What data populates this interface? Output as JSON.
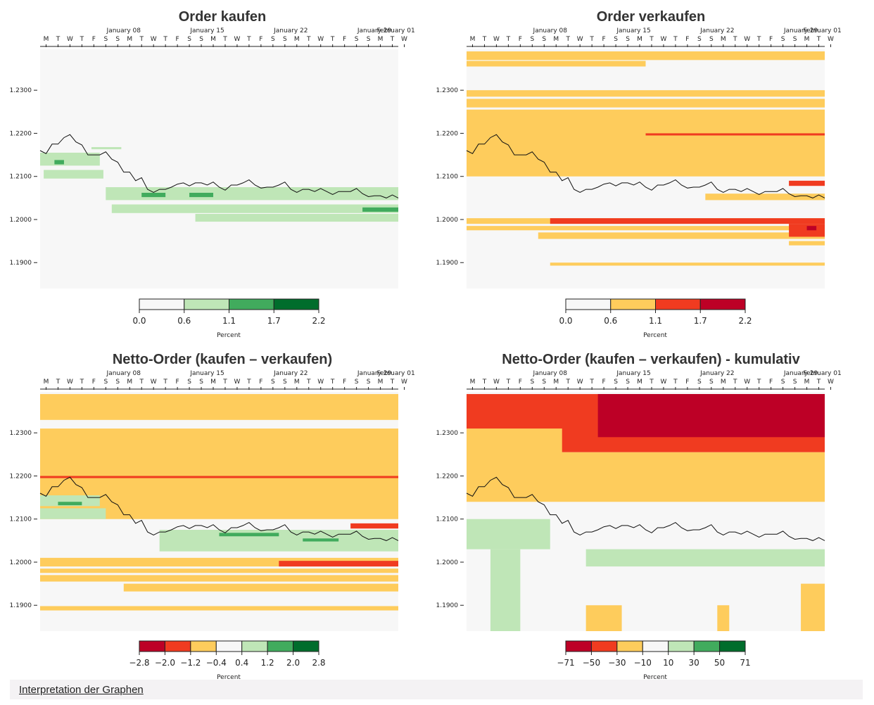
{
  "page": {
    "footer_link": "Interpretation der Graphen",
    "day_letters": [
      "M",
      "T",
      "W",
      "T",
      "F",
      "S",
      "S",
      "M",
      "T",
      "W",
      "T",
      "F",
      "S",
      "S",
      "M",
      "T",
      "W",
      "T",
      "F",
      "S",
      "S",
      "M",
      "T",
      "W",
      "T",
      "F",
      "S",
      "S",
      "M",
      "T",
      "W"
    ],
    "month_labels": [
      "January 08",
      "January 15",
      "January 22",
      "January 29",
      "February 01"
    ]
  },
  "chart_data": [
    {
      "type": "heatmap",
      "title": "Order kaufen",
      "xlabel": "",
      "ylabel": "",
      "x_start": "January 01",
      "x_end": "January 31",
      "ylim": [
        1.184,
        1.2395
      ],
      "yticks": [
        "1.1900",
        "1.2000",
        "1.2100",
        "1.2200",
        "1.2300"
      ],
      "legend": {
        "ticks": [
          "0.0",
          "0.6",
          "1.1",
          "1.7",
          "2.2"
        ],
        "colors": [
          "#f7f7f7",
          "#bfe6b7",
          "#41ab5d",
          "#006d2c"
        ],
        "label": "Percent"
      },
      "series": [
        {
          "name": "price",
          "values": [
            1.216,
            1.2175,
            1.219,
            1.218,
            1.215,
            1.215,
            1.214,
            1.211,
            1.209,
            1.207,
            1.207,
            1.2075,
            1.2085,
            1.2085,
            1.208,
            1.2075,
            1.208,
            1.2085,
            1.208,
            1.2075,
            1.208,
            1.207,
            1.207,
            1.2065,
            1.2065,
            1.2065,
            1.2065,
            1.206,
            1.2055,
            1.205,
            1.205
          ]
        }
      ],
      "bands": [
        {
          "y": [
            1.2125,
            1.2155
          ],
          "x": [
            0,
            5
          ],
          "level": 1
        },
        {
          "y": [
            1.2128,
            1.2138
          ],
          "x": [
            1.2,
            2.0
          ],
          "level": 2
        },
        {
          "y": [
            1.2095,
            1.2115
          ],
          "x": [
            0.3,
            5.3
          ],
          "level": 1
        },
        {
          "y": [
            1.2163,
            1.2168
          ],
          "x": [
            4.3,
            6.8
          ],
          "level": 1
        },
        {
          "y": [
            1.2045,
            1.2075
          ],
          "x": [
            5.5,
            30
          ],
          "level": 1
        },
        {
          "y": [
            1.2052,
            1.2062
          ],
          "x": [
            8.5,
            10.5
          ],
          "level": 2
        },
        {
          "y": [
            1.2052,
            1.2062
          ],
          "x": [
            12.5,
            14.5
          ],
          "level": 2
        },
        {
          "y": [
            1.2015,
            1.2035
          ],
          "x": [
            6,
            30
          ],
          "level": 1
        },
        {
          "y": [
            1.2018,
            1.2028
          ],
          "x": [
            27,
            30
          ],
          "level": 2
        },
        {
          "y": [
            1.1995,
            1.2013
          ],
          "x": [
            13,
            30
          ],
          "level": 1
        }
      ]
    },
    {
      "type": "heatmap",
      "title": "Order verkaufen",
      "xlabel": "",
      "ylabel": "",
      "x_start": "January 01",
      "x_end": "January 31",
      "ylim": [
        1.184,
        1.2395
      ],
      "yticks": [
        "1.1900",
        "1.2000",
        "1.2100",
        "1.2200",
        "1.2300"
      ],
      "legend": {
        "ticks": [
          "0.0",
          "0.6",
          "1.1",
          "1.7",
          "2.2"
        ],
        "colors": [
          "#f7f7f7",
          "#fecc5c",
          "#f03b20",
          "#bd0026"
        ],
        "label": "Percent"
      },
      "series": [
        {
          "name": "price",
          "values": [
            1.216,
            1.2175,
            1.219,
            1.218,
            1.215,
            1.215,
            1.214,
            1.211,
            1.209,
            1.207,
            1.207,
            1.2075,
            1.2085,
            1.2085,
            1.208,
            1.2075,
            1.208,
            1.2085,
            1.208,
            1.2075,
            1.208,
            1.207,
            1.207,
            1.2065,
            1.2065,
            1.2065,
            1.2065,
            1.206,
            1.2055,
            1.205,
            1.205
          ]
        }
      ],
      "bands": [
        {
          "y": [
            1.237,
            1.239
          ],
          "x": [
            0,
            30
          ],
          "level": 1
        },
        {
          "y": [
            1.2355,
            1.2368
          ],
          "x": [
            0,
            15
          ],
          "level": 1
        },
        {
          "y": [
            1.2285,
            1.23
          ],
          "x": [
            0,
            30
          ],
          "level": 1
        },
        {
          "y": [
            1.226,
            1.228
          ],
          "x": [
            0,
            30
          ],
          "level": 1
        },
        {
          "y": [
            1.21,
            1.2255
          ],
          "x": [
            0,
            30
          ],
          "level": 1
        },
        {
          "y": [
            1.2195,
            1.22
          ],
          "x": [
            15,
            30
          ],
          "level": 2
        },
        {
          "y": [
            1.2078,
            1.209
          ],
          "x": [
            27,
            30
          ],
          "level": 2
        },
        {
          "y": [
            1.2045,
            1.206
          ],
          "x": [
            20,
            30
          ],
          "level": 1
        },
        {
          "y": [
            1.199,
            1.2003
          ],
          "x": [
            0,
            30
          ],
          "level": 1
        },
        {
          "y": [
            1.199,
            1.2003
          ],
          "x": [
            7,
            30
          ],
          "level": 2
        },
        {
          "y": [
            1.1975,
            1.1985
          ],
          "x": [
            0,
            30
          ],
          "level": 1
        },
        {
          "y": [
            1.1955,
            1.197
          ],
          "x": [
            6,
            30
          ],
          "level": 1
        },
        {
          "y": [
            1.196,
            1.199
          ],
          "x": [
            27,
            30
          ],
          "level": 2
        },
        {
          "y": [
            1.1975,
            1.1985
          ],
          "x": [
            28.5,
            29.3
          ],
          "level": 3
        },
        {
          "y": [
            1.194,
            1.195
          ],
          "x": [
            27,
            30
          ],
          "level": 1
        },
        {
          "y": [
            1.1893,
            1.19
          ],
          "x": [
            7,
            30
          ],
          "level": 1
        }
      ]
    },
    {
      "type": "heatmap",
      "title": "Netto-Order (kaufen – verkaufen)",
      "xlabel": "",
      "ylabel": "",
      "x_start": "January 01",
      "x_end": "January 31",
      "ylim": [
        1.184,
        1.2395
      ],
      "yticks": [
        "1.1900",
        "1.2000",
        "1.2100",
        "1.2200",
        "1.2300"
      ],
      "legend": {
        "ticks": [
          "−2.8",
          "−2.0",
          "−1.2",
          "−0.4",
          "0.4",
          "1.2",
          "2.0",
          "2.8"
        ],
        "colors": [
          "#bd0026",
          "#f03b20",
          "#fecc5c",
          "#f7f7f7",
          "#bfe6b7",
          "#41ab5d",
          "#006d2c"
        ],
        "label": "Percent"
      },
      "series": [
        {
          "name": "price",
          "values": [
            1.216,
            1.2175,
            1.219,
            1.218,
            1.215,
            1.215,
            1.214,
            1.211,
            1.209,
            1.207,
            1.207,
            1.2075,
            1.2085,
            1.2085,
            1.208,
            1.2075,
            1.208,
            1.2085,
            1.208,
            1.2075,
            1.208,
            1.207,
            1.207,
            1.2065,
            1.2065,
            1.2065,
            1.2065,
            1.206,
            1.2055,
            1.205,
            1.205
          ]
        }
      ],
      "bands": [
        {
          "y": [
            1.233,
            1.239
          ],
          "x": [
            0,
            30
          ],
          "level": -1
        },
        {
          "y": [
            1.21,
            1.231
          ],
          "x": [
            0,
            30
          ],
          "level": -1
        },
        {
          "y": [
            1.2195,
            1.22
          ],
          "x": [
            0,
            30
          ],
          "level": -2
        },
        {
          "y": [
            1.213,
            1.2155
          ],
          "x": [
            0,
            5
          ],
          "level": 1
        },
        {
          "y": [
            1.2132,
            1.214
          ],
          "x": [
            1.5,
            3.5
          ],
          "level": 2
        },
        {
          "y": [
            1.21,
            1.2125
          ],
          "x": [
            0,
            5.5
          ],
          "level": 1
        },
        {
          "y": [
            1.2025,
            1.2075
          ],
          "x": [
            10,
            30
          ],
          "level": 1
        },
        {
          "y": [
            1.206,
            1.2068
          ],
          "x": [
            15,
            20
          ],
          "level": 2
        },
        {
          "y": [
            1.2048,
            1.2055
          ],
          "x": [
            22,
            25
          ],
          "level": 2
        },
        {
          "y": [
            1.2078,
            1.209
          ],
          "x": [
            26,
            30
          ],
          "level": -2
        },
        {
          "y": [
            1.199,
            1.201
          ],
          "x": [
            0,
            30
          ],
          "level": -1
        },
        {
          "y": [
            1.199,
            1.2003
          ],
          "x": [
            20,
            30
          ],
          "level": -2
        },
        {
          "y": [
            1.1975,
            1.1985
          ],
          "x": [
            0,
            30
          ],
          "level": -1
        },
        {
          "y": [
            1.1955,
            1.197
          ],
          "x": [
            0,
            30
          ],
          "level": -1
        },
        {
          "y": [
            1.1932,
            1.195
          ],
          "x": [
            7,
            30
          ],
          "level": -1
        },
        {
          "y": [
            1.1888,
            1.1898
          ],
          "x": [
            0,
            30
          ],
          "level": -1
        }
      ]
    },
    {
      "type": "heatmap",
      "title": "Netto-Order (kaufen – verkaufen) - kumulativ",
      "xlabel": "",
      "ylabel": "",
      "x_start": "January 01",
      "x_end": "January 31",
      "ylim": [
        1.184,
        1.2395
      ],
      "yticks": [
        "1.1900",
        "1.2000",
        "1.2100",
        "1.2200",
        "1.2300"
      ],
      "legend": {
        "ticks": [
          "−71",
          "−50",
          "−30",
          "−10",
          "10",
          "30",
          "50",
          "71"
        ],
        "colors": [
          "#bd0026",
          "#f03b20",
          "#fecc5c",
          "#f7f7f7",
          "#bfe6b7",
          "#41ab5d",
          "#006d2c"
        ],
        "label": "Percent"
      },
      "series": [
        {
          "name": "price",
          "values": [
            1.216,
            1.2175,
            1.219,
            1.218,
            1.215,
            1.215,
            1.214,
            1.211,
            1.209,
            1.207,
            1.207,
            1.2075,
            1.2085,
            1.2085,
            1.208,
            1.2075,
            1.208,
            1.2085,
            1.208,
            1.2075,
            1.208,
            1.207,
            1.207,
            1.2065,
            1.2065,
            1.2065,
            1.2065,
            1.206,
            1.2055,
            1.205,
            1.205
          ]
        }
      ],
      "bands": [
        {
          "y": [
            1.2255,
            1.239
          ],
          "x": [
            0,
            30
          ],
          "level": -2
        },
        {
          "y": [
            1.229,
            1.239
          ],
          "x": [
            11,
            30
          ],
          "level": -3
        },
        {
          "y": [
            1.225,
            1.231
          ],
          "x": [
            0,
            8
          ],
          "level": -1
        },
        {
          "y": [
            1.214,
            1.2255
          ],
          "x": [
            0,
            30
          ],
          "level": -1
        },
        {
          "y": [
            1.203,
            1.21
          ],
          "x": [
            0,
            7
          ],
          "level": 1
        },
        {
          "y": [
            1.184,
            1.203
          ],
          "x": [
            2,
            4.5
          ],
          "level": 1
        },
        {
          "y": [
            1.199,
            1.203
          ],
          "x": [
            10,
            30
          ],
          "level": 1
        },
        {
          "y": [
            1.184,
            1.195
          ],
          "x": [
            28,
            30
          ],
          "level": -1
        },
        {
          "y": [
            1.184,
            1.19
          ],
          "x": [
            10,
            13
          ],
          "level": -1
        },
        {
          "y": [
            1.184,
            1.19
          ],
          "x": [
            21,
            22
          ],
          "level": -1
        }
      ]
    }
  ]
}
